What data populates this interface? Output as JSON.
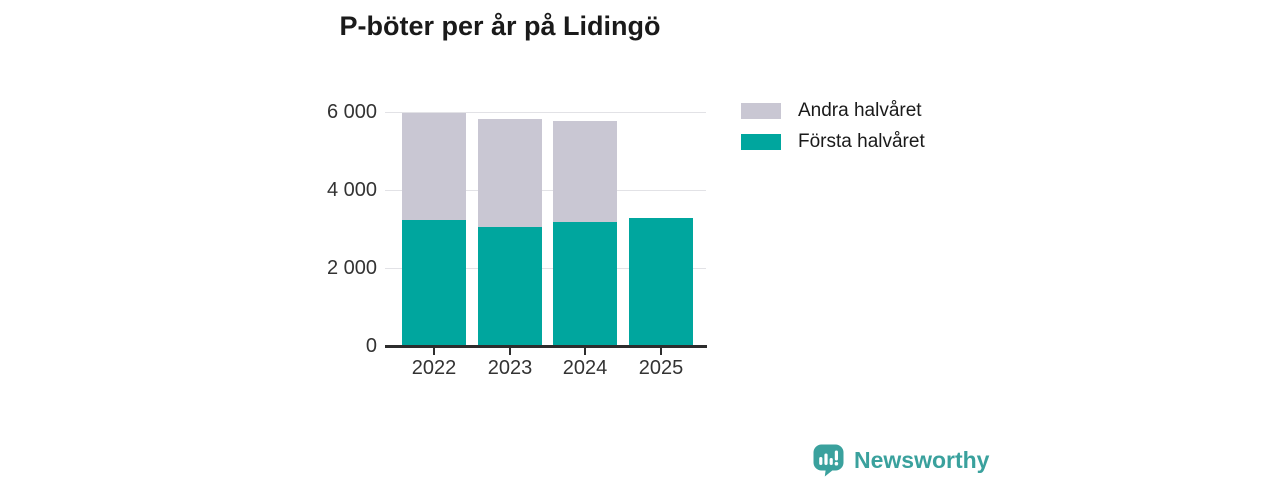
{
  "chart_data": {
    "type": "bar",
    "stacked": true,
    "title": "P-böter per år på Lidingö",
    "categories": [
      "2022",
      "2023",
      "2024",
      "2025"
    ],
    "series": [
      {
        "name": "Första halvåret",
        "color": "#00a69e",
        "values": [
          3230,
          3050,
          3170,
          3280
        ]
      },
      {
        "name": "Andra halvåret",
        "color": "#c9c7d3",
        "values": [
          2740,
          2770,
          2610,
          null
        ]
      }
    ],
    "ylim": [
      0,
      6000
    ],
    "yticks": [
      0,
      2000,
      4000,
      6000
    ],
    "ytick_labels": [
      "0",
      "2 000",
      "4 000",
      "6 000"
    ],
    "grid": true,
    "legend_position": "right-top",
    "legend": [
      {
        "label": "Andra halvåret",
        "color": "#c9c7d3"
      },
      {
        "label": "Första halvåret",
        "color": "#00a69e"
      }
    ]
  },
  "branding": {
    "logo_text": "Newsworthy",
    "logo_color": "#3aa19d",
    "logo_icon": "newsworthy-chart-bubble-icon"
  }
}
